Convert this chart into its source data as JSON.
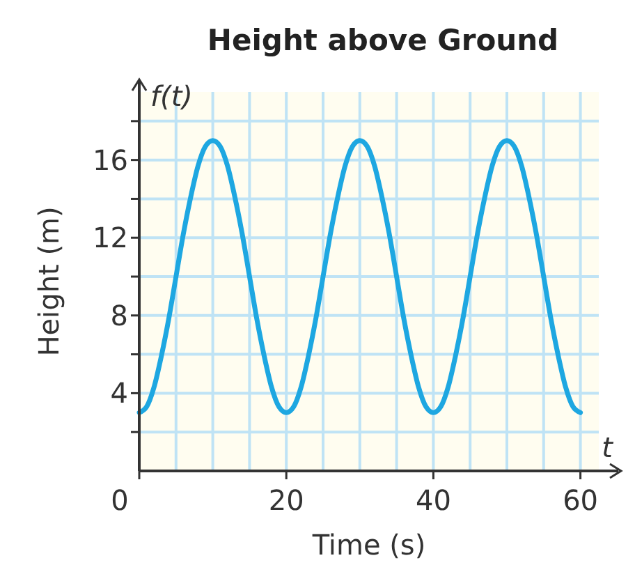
{
  "chart_data": {
    "type": "line",
    "title": "Height above Ground",
    "xlabel": "Time (s)",
    "ylabel": "Height (m)",
    "annotations": [
      "f(t)",
      "t"
    ],
    "x": [
      0,
      1,
      2,
      3,
      4,
      5,
      6,
      7,
      8,
      9,
      10,
      11,
      12,
      13,
      14,
      15,
      16,
      17,
      18,
      19,
      20,
      21,
      22,
      23,
      24,
      25,
      26,
      27,
      28,
      29,
      30,
      31,
      32,
      33,
      34,
      35,
      36,
      37,
      38,
      39,
      40,
      41,
      42,
      43,
      44,
      45,
      46,
      47,
      48,
      49,
      50,
      51,
      52,
      53,
      54,
      55,
      56,
      57,
      58,
      59,
      60
    ],
    "series": [
      {
        "color": "#1ea7e1",
        "values": [
          3,
          3.3,
          4.3,
          5.9,
          7.8,
          10,
          12.2,
          14.1,
          15.7,
          16.7,
          17,
          16.7,
          15.7,
          14.1,
          12.2,
          10,
          7.8,
          5.9,
          4.3,
          3.3,
          3,
          3.3,
          4.3,
          5.9,
          7.8,
          10,
          12.2,
          14.1,
          15.7,
          16.7,
          17,
          16.7,
          15.7,
          14.1,
          12.2,
          10,
          7.8,
          5.9,
          4.3,
          3.3,
          3,
          3.3,
          4.3,
          5.9,
          7.8,
          10,
          12.2,
          14.1,
          15.7,
          16.7,
          17,
          16.7,
          15.7,
          14.1,
          12.2,
          10,
          7.8,
          5.9,
          4.3,
          3.3,
          3
        ]
      }
    ],
    "xlim": [
      0,
      62.5
    ],
    "ylim": [
      0,
      19.5
    ],
    "xticks": [
      0,
      {
        "value": 5,
        "label": null
      },
      {
        "value": 10,
        "label": null
      },
      {
        "value": 15,
        "label": null
      },
      20,
      {
        "value": 25,
        "label": null
      },
      {
        "value": 30,
        "label": null
      },
      {
        "value": 35,
        "label": null
      },
      40,
      {
        "value": 45,
        "label": null
      },
      {
        "value": 50,
        "label": null
      },
      {
        "value": 55,
        "label": null
      },
      60
    ],
    "yticks": [
      {
        "value": 2,
        "label": null
      },
      4,
      {
        "value": 6,
        "label": null
      },
      8,
      {
        "value": 10,
        "label": null
      },
      12,
      {
        "value": 14,
        "label": null
      },
      16,
      {
        "value": 18,
        "label": null
      }
    ],
    "grid": true,
    "marker": "none",
    "line_style": "solid"
  }
}
